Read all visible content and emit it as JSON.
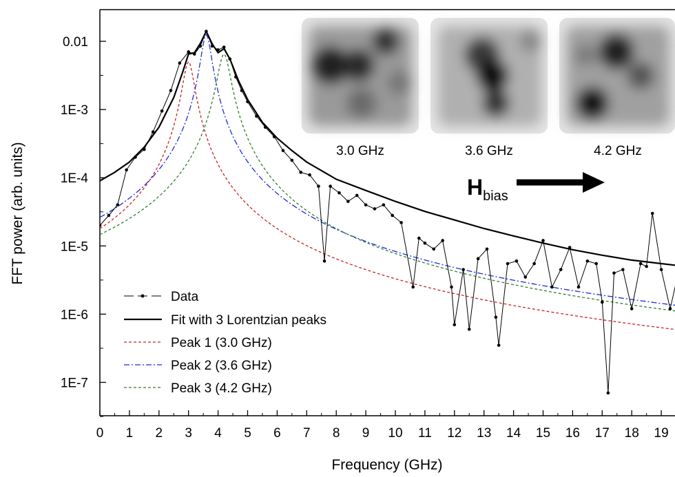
{
  "chart_data": {
    "type": "line",
    "title": "",
    "xlabel": "Frequency (GHz)",
    "ylabel": "FFT power (arb. units)",
    "x_range": [
      0,
      20
    ],
    "y_range": [
      3e-08,
      0.03
    ],
    "y_scale": "log",
    "x_ticks": [
      "0",
      "1",
      "2",
      "3",
      "4",
      "5",
      "6",
      "7",
      "8",
      "9",
      "10",
      "11",
      "12",
      "13",
      "14",
      "15",
      "16",
      "17",
      "18",
      "19"
    ],
    "y_ticks": [
      {
        "value": 0.01,
        "label": "0.01"
      },
      {
        "value": 0.001,
        "label": "1E-3"
      },
      {
        "value": 0.0001,
        "label": "1E-4"
      },
      {
        "value": 1e-05,
        "label": "1E-5"
      },
      {
        "value": 1e-06,
        "label": "1E-6"
      },
      {
        "value": 1e-07,
        "label": "1E-7"
      }
    ],
    "grid": false,
    "legend_position": "bottom-left",
    "series": [
      {
        "name": "Data",
        "style": "line-with-points",
        "color": "#000000",
        "x": [
          0.0,
          0.3,
          0.6,
          0.9,
          1.2,
          1.5,
          1.8,
          2.1,
          2.4,
          2.7,
          3.0,
          3.2,
          3.4,
          3.6,
          3.8,
          4.0,
          4.2,
          4.4,
          4.6,
          4.8,
          5.0,
          5.3,
          5.6,
          5.9,
          6.2,
          6.5,
          6.8,
          7.1,
          7.4,
          7.6,
          7.8,
          8.1,
          8.4,
          8.7,
          9.0,
          9.3,
          9.6,
          9.9,
          10.2,
          10.6,
          10.8,
          11.0,
          11.3,
          11.6,
          11.9,
          12.0,
          12.3,
          12.5,
          12.8,
          13.1,
          13.4,
          13.5,
          13.8,
          14.1,
          14.4,
          14.7,
          15.0,
          15.3,
          15.6,
          15.9,
          16.2,
          16.5,
          16.8,
          17.0,
          17.2,
          17.4,
          17.7,
          18.0,
          18.3,
          18.5,
          18.7,
          19.0,
          19.3,
          19.6,
          19.9
        ],
        "y": [
          2e-05,
          2.8e-05,
          4e-05,
          0.00013,
          0.0002,
          0.00026,
          0.00047,
          0.00095,
          0.0019,
          0.0048,
          0.007,
          0.0065,
          0.0085,
          0.014,
          0.0085,
          0.0075,
          0.0082,
          0.0055,
          0.003,
          0.0019,
          0.0013,
          0.0008,
          0.00055,
          0.0004,
          0.00025,
          0.00018,
          0.00012,
          0.00011,
          7.5e-05,
          6e-06,
          7.5e-05,
          6e-05,
          4.5e-05,
          5.5e-05,
          4e-05,
          3.5e-05,
          4e-05,
          2.8e-05,
          2.2e-05,
          2.5e-06,
          1.3e-05,
          1.1e-05,
          9e-06,
          1.2e-05,
          2.5e-06,
          7e-07,
          4.5e-06,
          6e-07,
          6.5e-06,
          9e-06,
          9e-07,
          3.5e-07,
          5.5e-06,
          6e-06,
          3.5e-06,
          5.5e-06,
          1.2e-05,
          2.5e-06,
          4.5e-06,
          9.5e-06,
          2.5e-06,
          6e-06,
          5.5e-06,
          1.5e-06,
          7e-08,
          4e-06,
          4.5e-06,
          1.2e-06,
          5.5e-06,
          5e-06,
          3e-05,
          4.5e-06,
          1.2e-06,
          4.5e-06,
          5.5e-06
        ]
      },
      {
        "name": "Fit with 3 Lorentzian peaks",
        "style": "solid",
        "color": "#000000",
        "x": [
          0,
          0.5,
          1,
          1.5,
          2,
          2.5,
          2.8,
          3.0,
          3.2,
          3.4,
          3.6,
          3.8,
          4.0,
          4.2,
          4.4,
          4.7,
          5,
          5.5,
          6,
          6.5,
          7,
          8,
          9,
          10,
          11,
          12,
          13,
          14,
          15,
          16,
          17,
          18,
          19,
          20
        ],
        "y": [
          9e-05,
          0.00012,
          0.00017,
          0.00028,
          0.00055,
          0.0015,
          0.0035,
          0.0065,
          0.0068,
          0.0093,
          0.014,
          0.0092,
          0.0068,
          0.0078,
          0.0055,
          0.0026,
          0.0014,
          0.00065,
          0.00038,
          0.00025,
          0.00017,
          9.5e-05,
          6.5e-05,
          4.5e-05,
          3.2e-05,
          2.4e-05,
          1.8e-05,
          1.4e-05,
          1.1e-05,
          8.8e-06,
          7.3e-06,
          6.2e-06,
          5.5e-06,
          4.9e-06
        ]
      },
      {
        "name": "Peak 1 (3.0 GHz)",
        "style": "dashed",
        "color": "#cc2222",
        "lorentz": {
          "f0": 3.0,
          "amp": 0.005,
          "hwhm": 0.18
        }
      },
      {
        "name": "Peak 2 (3.6 GHz)",
        "style": "dash-dot",
        "color": "#1f2bd6",
        "lorentz": {
          "f0": 3.6,
          "amp": 0.0125,
          "hwhm": 0.165
        }
      },
      {
        "name": "Peak 3 (4.2 GHz)",
        "style": "dashed",
        "color": "#2e7d2e",
        "lorentz": {
          "f0": 4.2,
          "amp": 0.0065,
          "hwhm": 0.2
        }
      }
    ],
    "inset": {
      "labels": [
        "3.0 GHz",
        "3.6 GHz",
        "4.2 GHz"
      ],
      "arrow_label_main": "H",
      "arrow_label_sub": "bias"
    }
  }
}
